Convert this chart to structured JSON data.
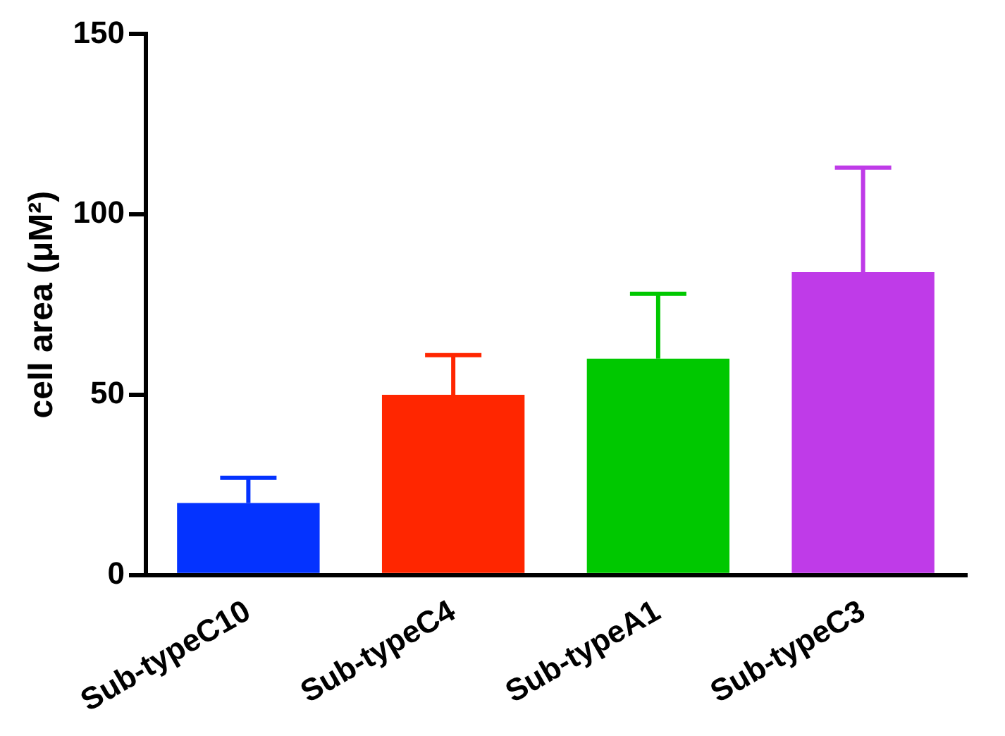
{
  "chart_data": {
    "type": "bar",
    "ylabel": "cell area (μM²)",
    "categories": [
      "Sub-typeC10",
      "Sub-typeC4",
      "Sub-typeA1",
      "Sub-typeC3"
    ],
    "values": [
      20,
      50,
      60,
      84
    ],
    "colors": [
      "#0433ff",
      "#ff2600",
      "#00c800",
      "#bf3be8"
    ],
    "errors": [
      [
        20,
        27
      ],
      [
        50,
        61
      ],
      [
        60,
        78
      ],
      [
        84,
        113
      ]
    ],
    "ylim": [
      0,
      150
    ],
    "yticks": [
      0,
      50,
      100,
      150
    ],
    "grid": false,
    "legend": false
  }
}
